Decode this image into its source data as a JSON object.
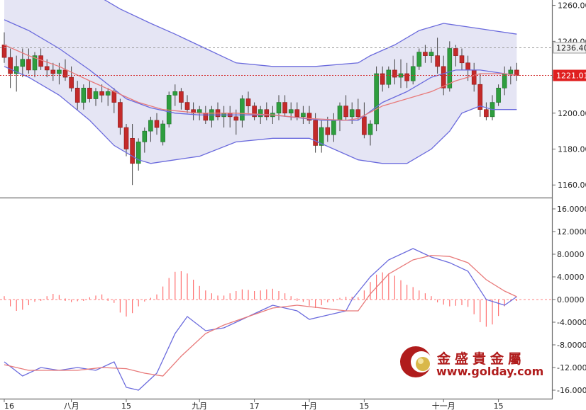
{
  "chart_data": [
    {
      "type": "candlestick",
      "title": "",
      "price_axis": {
        "ticks": [
          "1260.00",
          "1240.00",
          "1220.00",
          "1200.00",
          "1180.00",
          "1160.00"
        ],
        "range": [
          1153,
          1263
        ]
      },
      "price_tags": [
        {
          "label": "1236.40",
          "value": 1236.4,
          "style": "dashed-gray"
        },
        {
          "label": "1221.01",
          "value": 1221.01,
          "style": "dotted-red"
        }
      ],
      "candles": [
        [
          1238,
          1245,
          1228,
          1231
        ],
        [
          1231,
          1236,
          1214,
          1222
        ],
        [
          1222,
          1232,
          1212,
          1226
        ],
        [
          1226,
          1236,
          1220,
          1230
        ],
        [
          1230,
          1236,
          1222,
          1224
        ],
        [
          1224,
          1234,
          1220,
          1232
        ],
        [
          1232,
          1236,
          1224,
          1226
        ],
        [
          1226,
          1230,
          1220,
          1224
        ],
        [
          1224,
          1228,
          1218,
          1222
        ],
        [
          1222,
          1228,
          1216,
          1224
        ],
        [
          1224,
          1230,
          1218,
          1220
        ],
        [
          1220,
          1226,
          1212,
          1214
        ],
        [
          1214,
          1218,
          1202,
          1206
        ],
        [
          1206,
          1216,
          1202,
          1214
        ],
        [
          1214,
          1218,
          1206,
          1208
        ],
        [
          1208,
          1214,
          1204,
          1212
        ],
        [
          1212,
          1216,
          1206,
          1210
        ],
        [
          1210,
          1214,
          1204,
          1212
        ],
        [
          1212,
          1214,
          1200,
          1206
        ],
        [
          1206,
          1208,
          1188,
          1192
        ],
        [
          1192,
          1194,
          1176,
          1180
        ],
        [
          1186,
          1194,
          1160,
          1172
        ],
        [
          1172,
          1186,
          1168,
          1184
        ],
        [
          1184,
          1192,
          1178,
          1190
        ],
        [
          1190,
          1198,
          1184,
          1196
        ],
        [
          1196,
          1200,
          1188,
          1192
        ],
        [
          1184,
          1196,
          1182,
          1194
        ],
        [
          1194,
          1212,
          1192,
          1210
        ],
        [
          1210,
          1216,
          1204,
          1212
        ],
        [
          1212,
          1214,
          1202,
          1206
        ],
        [
          1206,
          1210,
          1200,
          1202
        ],
        [
          1202,
          1206,
          1196,
          1200
        ],
        [
          1200,
          1204,
          1196,
          1202
        ],
        [
          1200,
          1204,
          1194,
          1196
        ],
        [
          1196,
          1204,
          1192,
          1202
        ],
        [
          1202,
          1206,
          1196,
          1198
        ],
        [
          1198,
          1204,
          1192,
          1200
        ],
        [
          1200,
          1204,
          1192,
          1198
        ],
        [
          1198,
          1202,
          1188,
          1196
        ],
        [
          1196,
          1210,
          1192,
          1208
        ],
        [
          1208,
          1212,
          1200,
          1204
        ],
        [
          1204,
          1206,
          1196,
          1198
        ],
        [
          1198,
          1204,
          1194,
          1202
        ],
        [
          1202,
          1206,
          1196,
          1198
        ],
        [
          1198,
          1204,
          1194,
          1200
        ],
        [
          1200,
          1210,
          1196,
          1206
        ],
        [
          1206,
          1210,
          1198,
          1200
        ],
        [
          1200,
          1206,
          1196,
          1202
        ],
        [
          1202,
          1206,
          1196,
          1198
        ],
        [
          1198,
          1204,
          1194,
          1200
        ],
        [
          1200,
          1204,
          1194,
          1196
        ],
        [
          1196,
          1200,
          1178,
          1182
        ],
        [
          1182,
          1196,
          1178,
          1192
        ],
        [
          1192,
          1198,
          1184,
          1188
        ],
        [
          1188,
          1200,
          1184,
          1196
        ],
        [
          1196,
          1206,
          1190,
          1204
        ],
        [
          1204,
          1210,
          1196,
          1198
        ],
        [
          1198,
          1206,
          1194,
          1202
        ],
        [
          1202,
          1208,
          1196,
          1198
        ],
        [
          1198,
          1206,
          1186,
          1188
        ],
        [
          1188,
          1196,
          1182,
          1194
        ],
        [
          1194,
          1226,
          1190,
          1222
        ],
        [
          1222,
          1226,
          1212,
          1216
        ],
        [
          1216,
          1226,
          1214,
          1224
        ],
        [
          1224,
          1230,
          1216,
          1220
        ],
        [
          1220,
          1230,
          1214,
          1222
        ],
        [
          1222,
          1228,
          1214,
          1218
        ],
        [
          1218,
          1232,
          1216,
          1226
        ],
        [
          1226,
          1236,
          1224,
          1234
        ],
        [
          1234,
          1238,
          1228,
          1232
        ],
        [
          1232,
          1236,
          1228,
          1234
        ],
        [
          1232,
          1242,
          1222,
          1226
        ],
        [
          1226,
          1232,
          1210,
          1214
        ],
        [
          1214,
          1240,
          1212,
          1236
        ],
        [
          1236,
          1238,
          1226,
          1232
        ],
        [
          1232,
          1236,
          1224,
          1228
        ],
        [
          1228,
          1232,
          1218,
          1224
        ],
        [
          1224,
          1228,
          1212,
          1216
        ],
        [
          1216,
          1222,
          1198,
          1202
        ],
        [
          1202,
          1206,
          1196,
          1198
        ],
        [
          1198,
          1210,
          1196,
          1206
        ],
        [
          1206,
          1216,
          1204,
          1214
        ],
        [
          1214,
          1226,
          1210,
          1222
        ],
        [
          1222,
          1226,
          1216,
          1224
        ],
        [
          1224,
          1228,
          1218,
          1221
        ]
      ],
      "bollinger_upper": [
        [
          0,
          1268
        ],
        [
          7,
          1270
        ],
        [
          14,
          1268
        ],
        [
          19,
          1258
        ],
        [
          24,
          1250
        ],
        [
          28,
          1244
        ],
        [
          33,
          1236
        ],
        [
          38,
          1228
        ],
        [
          44,
          1226
        ],
        [
          51,
          1226
        ],
        [
          58,
          1228
        ],
        [
          60,
          1232
        ],
        [
          64,
          1238
        ],
        [
          68,
          1246
        ],
        [
          72,
          1250
        ],
        [
          76,
          1248
        ],
        [
          80,
          1246
        ],
        [
          84,
          1244
        ]
      ],
      "bollinger_middle": [
        [
          0,
          1252
        ],
        [
          4,
          1246
        ],
        [
          9,
          1236
        ],
        [
          14,
          1224
        ],
        [
          17,
          1216
        ],
        [
          20,
          1208
        ],
        [
          24,
          1203
        ],
        [
          28,
          1200
        ],
        [
          32,
          1199
        ],
        [
          38,
          1199
        ],
        [
          44,
          1199
        ],
        [
          52,
          1196
        ],
        [
          58,
          1196
        ],
        [
          62,
          1206
        ],
        [
          66,
          1212
        ],
        [
          70,
          1220
        ],
        [
          74,
          1224
        ],
        [
          78,
          1224
        ],
        [
          82,
          1222
        ],
        [
          84,
          1221
        ]
      ],
      "bollinger_lower": [
        [
          0,
          1226
        ],
        [
          4,
          1220
        ],
        [
          9,
          1210
        ],
        [
          14,
          1196
        ],
        [
          18,
          1182
        ],
        [
          22,
          1174
        ],
        [
          24,
          1172
        ],
        [
          28,
          1174
        ],
        [
          32,
          1176
        ],
        [
          38,
          1184
        ],
        [
          44,
          1186
        ],
        [
          50,
          1186
        ],
        [
          54,
          1180
        ],
        [
          58,
          1174
        ],
        [
          62,
          1172
        ],
        [
          66,
          1172
        ],
        [
          70,
          1180
        ],
        [
          73,
          1190
        ],
        [
          75,
          1200
        ],
        [
          78,
          1204
        ],
        [
          80,
          1202
        ],
        [
          84,
          1202
        ]
      ],
      "ma": [
        [
          0,
          1238
        ],
        [
          4,
          1232
        ],
        [
          9,
          1226
        ],
        [
          14,
          1218
        ],
        [
          18,
          1212
        ],
        [
          22,
          1206
        ],
        [
          26,
          1202
        ],
        [
          32,
          1200
        ],
        [
          38,
          1200
        ],
        [
          44,
          1199
        ],
        [
          50,
          1197
        ],
        [
          56,
          1196
        ],
        [
          58,
          1197
        ],
        [
          62,
          1204
        ],
        [
          66,
          1208
        ],
        [
          70,
          1212
        ],
        [
          74,
          1218
        ],
        [
          78,
          1222
        ],
        [
          82,
          1222
        ],
        [
          84,
          1221
        ]
      ]
    },
    {
      "type": "line",
      "title": "",
      "value_axis": {
        "ticks": [
          "16.0000",
          "12.0000",
          "8.0000",
          "4.0000",
          "0.0000",
          "-4.0000",
          "-8.0000",
          "-12.0000",
          "-16.0000"
        ],
        "range": [
          -17.5,
          17.5
        ]
      },
      "x_ticks": [
        {
          "label": "16",
          "x": 0
        },
        {
          "label": "八月",
          "x": 11
        },
        {
          "label": "15",
          "x": 20
        },
        {
          "label": "九月",
          "x": 32
        },
        {
          "label": "17",
          "x": 41
        },
        {
          "label": "十月",
          "x": 50
        },
        {
          "label": "15",
          "x": 59
        },
        {
          "label": "十一月",
          "x": 72
        },
        {
          "label": "15",
          "x": 81
        }
      ],
      "series": [
        {
          "values": [
            [
              0,
              -11
            ],
            [
              3,
              -13.5
            ],
            [
              6,
              -12
            ],
            [
              9,
              -12.5
            ],
            [
              12,
              -12
            ],
            [
              15,
              -12.5
            ],
            [
              18,
              -11
            ],
            [
              20,
              -15.5
            ],
            [
              22,
              -16
            ],
            [
              25,
              -13
            ],
            [
              28,
              -6
            ],
            [
              30,
              -3
            ],
            [
              33,
              -5.5
            ],
            [
              36,
              -5
            ],
            [
              40,
              -3
            ],
            [
              44,
              -1
            ],
            [
              46,
              -1.5
            ],
            [
              48,
              -2
            ],
            [
              50,
              -3.5
            ],
            [
              52,
              -3
            ],
            [
              54,
              -2.5
            ],
            [
              56,
              -2
            ],
            [
              57,
              0
            ],
            [
              60,
              4
            ],
            [
              63,
              7
            ],
            [
              67,
              9
            ],
            [
              70,
              7.5
            ],
            [
              73,
              6.5
            ],
            [
              76,
              5
            ],
            [
              79,
              0
            ],
            [
              82,
              -1
            ],
            [
              84,
              0.5
            ]
          ]
        },
        {
          "values": [
            [
              0,
              -11.5
            ],
            [
              4,
              -12.5
            ],
            [
              8,
              -12.5
            ],
            [
              12,
              -12.5
            ],
            [
              16,
              -12
            ],
            [
              20,
              -12.2
            ],
            [
              23,
              -13
            ],
            [
              26,
              -13.5
            ],
            [
              29,
              -10
            ],
            [
              33,
              -6
            ],
            [
              36,
              -4.5
            ],
            [
              40,
              -3
            ],
            [
              44,
              -1.5
            ],
            [
              48,
              -1
            ],
            [
              52,
              -1.5
            ],
            [
              56,
              -2
            ],
            [
              58,
              -2
            ],
            [
              60,
              1
            ],
            [
              63,
              4.5
            ],
            [
              67,
              7
            ],
            [
              70,
              7.8
            ],
            [
              73,
              7.6
            ],
            [
              76,
              6.5
            ],
            [
              79,
              3.5
            ],
            [
              82,
              1.5
            ],
            [
              84,
              0.5
            ]
          ]
        }
      ],
      "histogram": [
        0.6,
        -1.2,
        -2,
        -1.8,
        -1,
        -0.4,
        0.1,
        0.6,
        1,
        0.8,
        0.2,
        -0.2,
        -0.3,
        0.1,
        0.4,
        0.7,
        0.9,
        0.2,
        -0.6,
        -2.3,
        -3,
        -2.4,
        -1.2,
        -0.1,
        0.3,
        0.9,
        2.3,
        3.8,
        4.9,
        5,
        4.6,
        3.5,
        2.4,
        1.6,
        1.1,
        0.7,
        0.7,
        1.1,
        1.5,
        1.8,
        1.7,
        1.5,
        1.6,
        1.8,
        1.9,
        1.5,
        1.1,
        0.6,
        0.2,
        -0.4,
        -1.1,
        -1.5,
        -1,
        -0.5,
        -0.1,
        0.3,
        0.5,
        0.5,
        0.4,
        1.6,
        3.1,
        4.4,
        4.8,
        4.6,
        4.2,
        3.4,
        2.6,
        2.2,
        1.6,
        1.1,
        0.6,
        -0.5,
        -0.9,
        -1.2,
        -1.1,
        -1,
        -1.3,
        -2.6,
        -4,
        -4.8,
        -4.4,
        -2.9,
        -1.2,
        0,
        0.1
      ]
    }
  ],
  "logo": {
    "name": "金盛貴金屬",
    "url": "www.golday.com"
  }
}
